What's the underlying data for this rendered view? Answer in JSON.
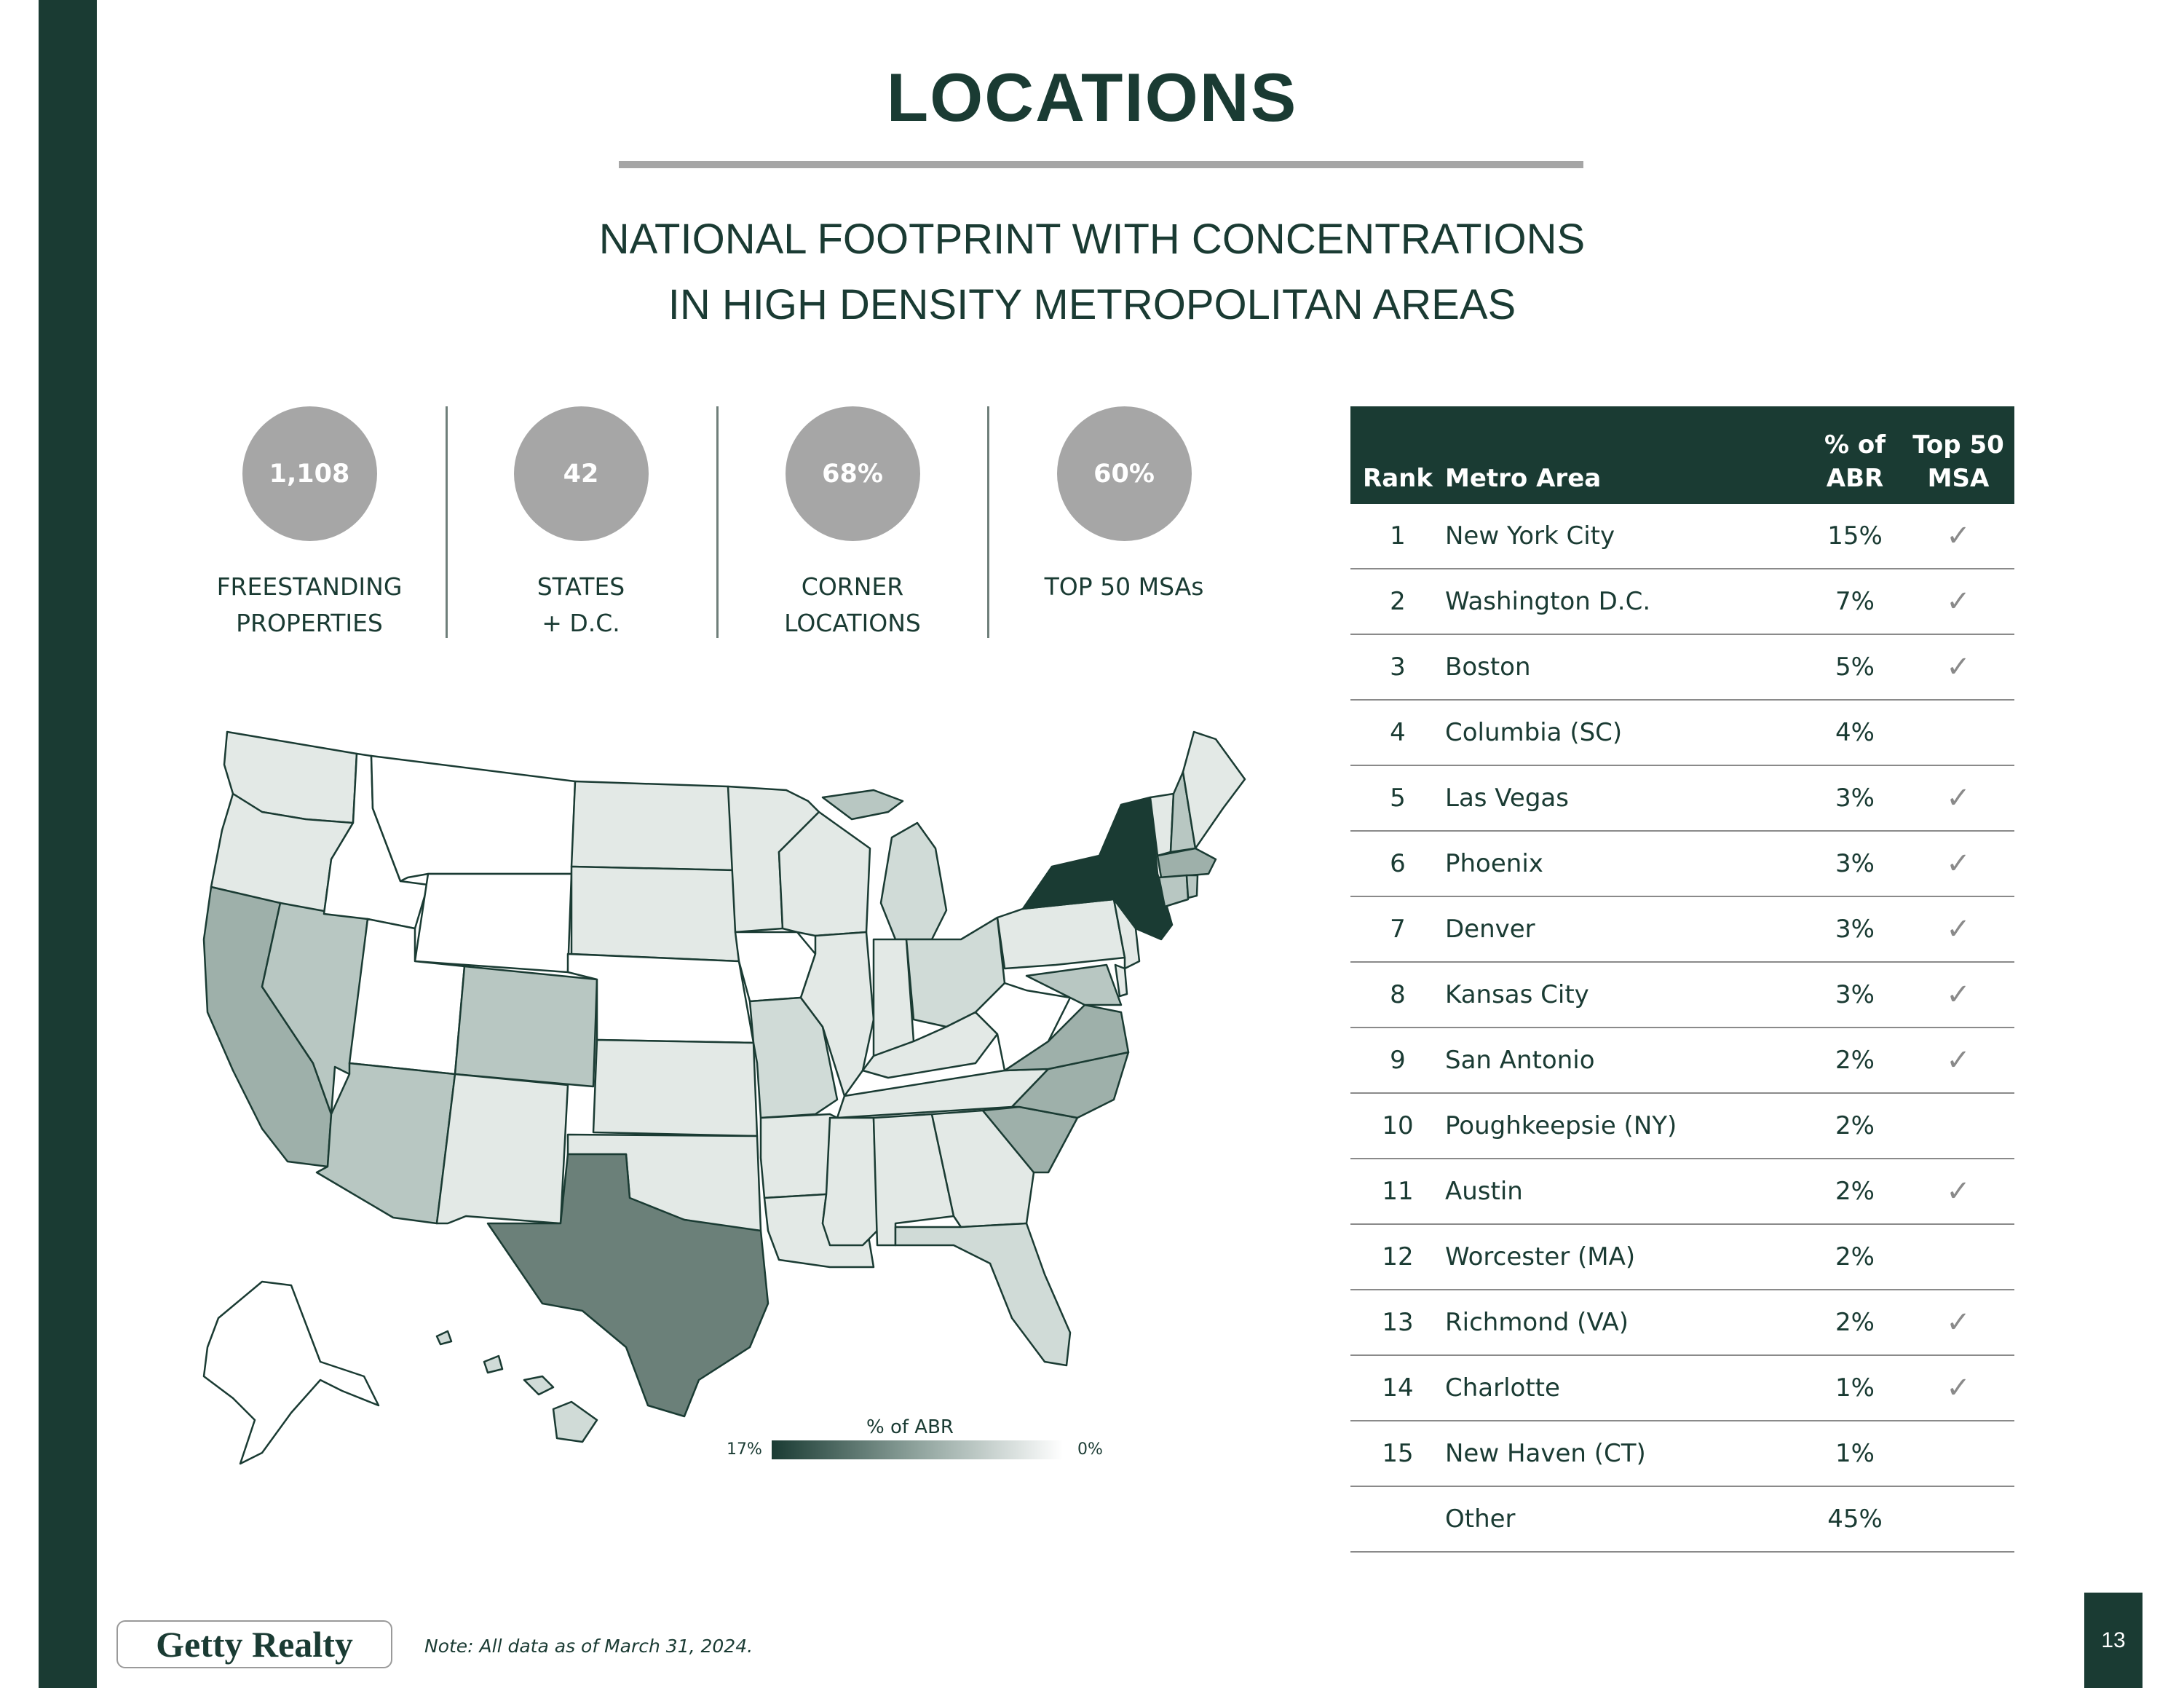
{
  "page": {
    "title": "LOCATIONS",
    "subtitle_line1": "NATIONAL FOOTPRINT WITH CONCENTRATIONS",
    "subtitle_line2": "IN HIGH DENSITY METROPOLITAN AREAS",
    "page_number": "13",
    "note": "Note: All data as of March 31, 2024.",
    "logo_text": "Getty Realty"
  },
  "stats": [
    {
      "value": "1,108",
      "label_line1": "FREESTANDING",
      "label_line2": "PROPERTIES"
    },
    {
      "value": "42",
      "label_line1": "STATES",
      "label_line2": "+ D.C."
    },
    {
      "value": "68%",
      "label_line1": "CORNER",
      "label_line2": "LOCATIONS"
    },
    {
      "value": "60%",
      "label_line1": "TOP 50 MSAs",
      "label_line2": ""
    }
  ],
  "map": {
    "legend_title": "% of ABR",
    "legend_min_label": "17%",
    "legend_max_label": "0%",
    "colors": {
      "darkest": "#1a3b33",
      "dark": "#6b8079",
      "mid": "#9eb0aa",
      "light": "#b8c7c2",
      "lighter": "#d0dbd7",
      "lightest": "#e3e9e6",
      "none": "#ffffff"
    }
  },
  "table": {
    "headers": {
      "rank": "Rank",
      "area": "Metro Area",
      "pct_line1": "% of",
      "pct_line2": "ABR",
      "top_line1": "Top 50",
      "top_line2": "MSA"
    },
    "rows": [
      {
        "rank": "1",
        "area": "New York City",
        "pct": "15%",
        "top": "✓"
      },
      {
        "rank": "2",
        "area": "Washington D.C.",
        "pct": "7%",
        "top": "✓"
      },
      {
        "rank": "3",
        "area": "Boston",
        "pct": "5%",
        "top": "✓"
      },
      {
        "rank": "4",
        "area": "Columbia (SC)",
        "pct": "4%",
        "top": ""
      },
      {
        "rank": "5",
        "area": "Las Vegas",
        "pct": "3%",
        "top": "✓"
      },
      {
        "rank": "6",
        "area": "Phoenix",
        "pct": "3%",
        "top": "✓"
      },
      {
        "rank": "7",
        "area": "Denver",
        "pct": "3%",
        "top": "✓"
      },
      {
        "rank": "8",
        "area": "Kansas City",
        "pct": "3%",
        "top": "✓"
      },
      {
        "rank": "9",
        "area": "San Antonio",
        "pct": "2%",
        "top": "✓"
      },
      {
        "rank": "10",
        "area": "Poughkeepsie (NY)",
        "pct": "2%",
        "top": ""
      },
      {
        "rank": "11",
        "area": "Austin",
        "pct": "2%",
        "top": "✓"
      },
      {
        "rank": "12",
        "area": "Worcester (MA)",
        "pct": "2%",
        "top": ""
      },
      {
        "rank": "13",
        "area": "Richmond (VA)",
        "pct": "2%",
        "top": "✓"
      },
      {
        "rank": "14",
        "area": "Charlotte",
        "pct": "1%",
        "top": "✓"
      },
      {
        "rank": "15",
        "area": "New Haven (CT)",
        "pct": "1%",
        "top": ""
      },
      {
        "rank": "",
        "area": "Other",
        "pct": "45%",
        "top": ""
      }
    ]
  }
}
